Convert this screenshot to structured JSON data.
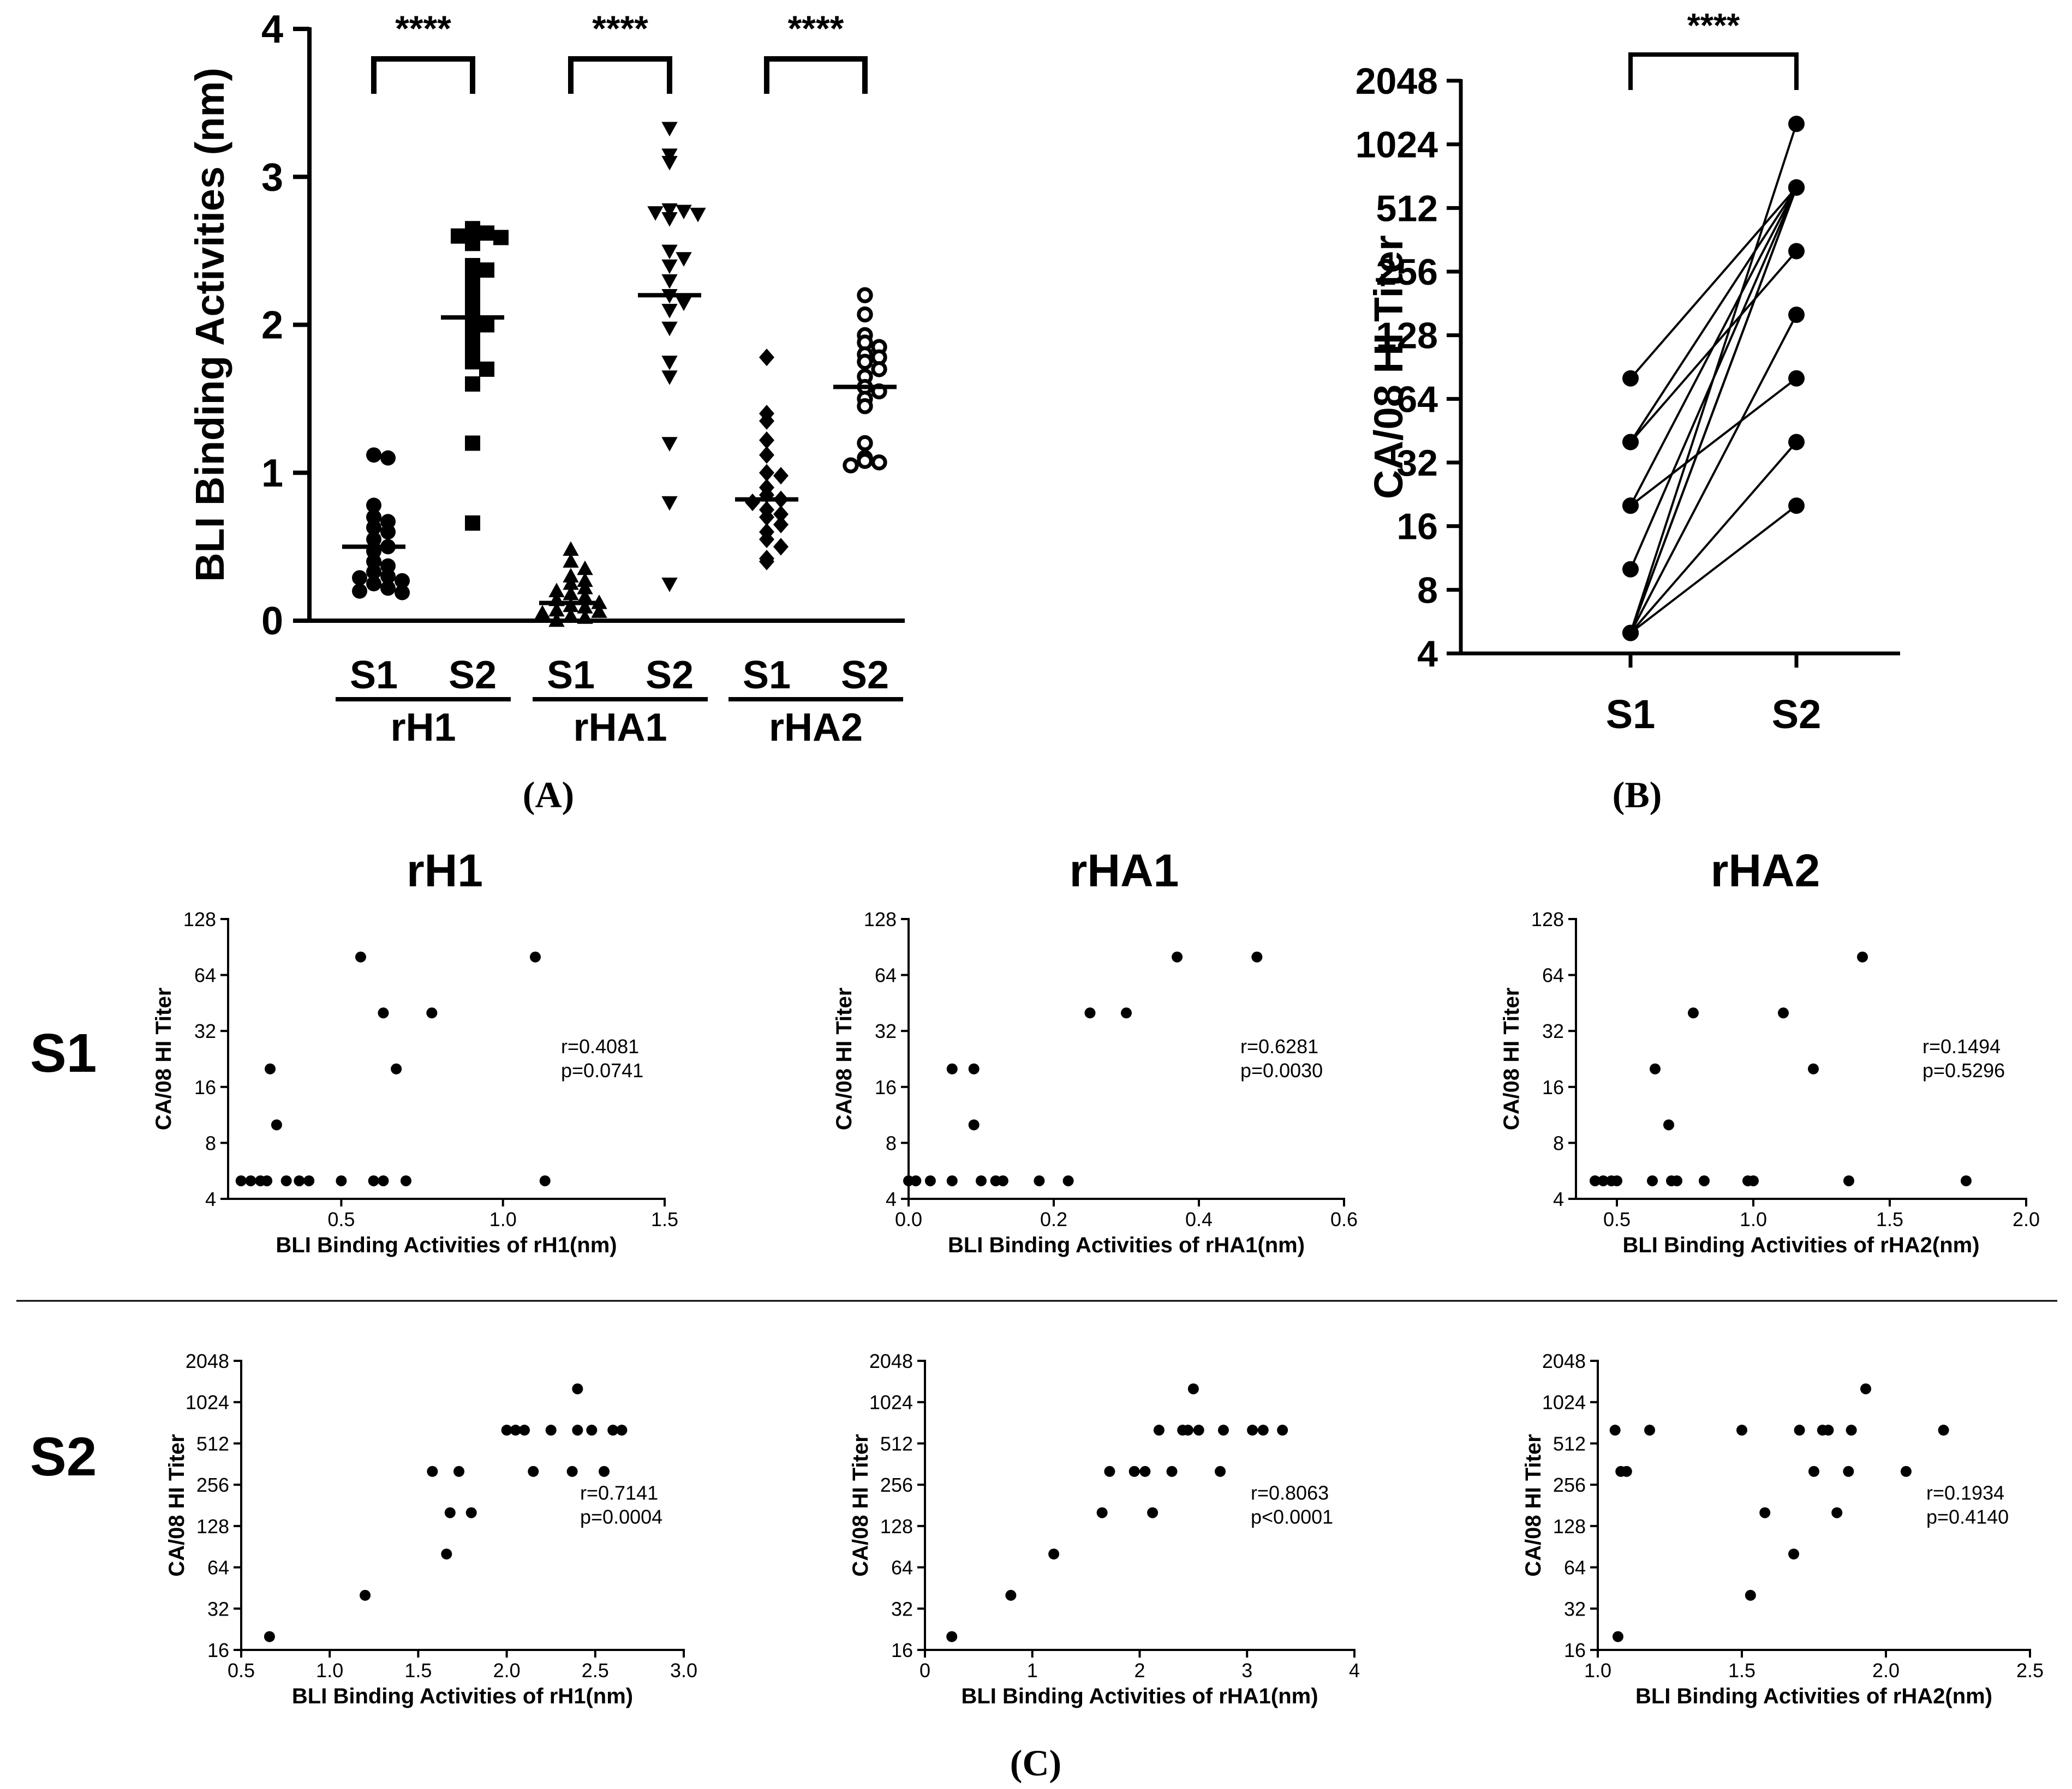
{
  "panel_labels": {
    "a": "(A)",
    "b": "(B)",
    "c": "(C)"
  },
  "row_labels": {
    "s1": "S1",
    "s2": "S2"
  },
  "column_titles": [
    "rH1",
    "rHA1",
    "rHA2"
  ],
  "chart_data": [
    {
      "id": "A",
      "type": "scatter",
      "ylabel": "BLI Binding Activities (nm)",
      "ylim": [
        0,
        4
      ],
      "yticks": [
        "0",
        "1",
        "2",
        "3",
        "4"
      ],
      "groups": [
        {
          "antigen": "rH1",
          "labels": [
            "S1",
            "S2"
          ],
          "significance": "****",
          "S1": {
            "marker": "circle",
            "mean": 0.5,
            "values": [
              1.12,
              1.1,
              0.78,
              0.7,
              0.67,
              0.63,
              0.6,
              0.55,
              0.5,
              0.47,
              0.4,
              0.37,
              0.33,
              0.3,
              0.29,
              0.27,
              0.25,
              0.22,
              0.2,
              0.19
            ]
          },
          "S2": {
            "marker": "square",
            "mean": 2.05,
            "values": [
              2.65,
              2.62,
              2.6,
              2.59,
              2.55,
              2.4,
              2.37,
              2.3,
              2.25,
              2.15,
              2.1,
              2.05,
              2.0,
              1.95,
              1.85,
              1.75,
              1.7,
              1.6,
              1.2,
              0.66
            ]
          }
        },
        {
          "antigen": "rHA1",
          "labels": [
            "S1",
            "S2"
          ],
          "significance": "****",
          "S1": {
            "marker": "triangle-up",
            "mean": 0.12,
            "values": [
              0.48,
              0.4,
              0.35,
              0.3,
              0.27,
              0.25,
              0.22,
              0.2,
              0.18,
              0.16,
              0.14,
              0.12,
              0.1,
              0.09,
              0.07,
              0.06,
              0.05,
              0.03,
              0.02,
              0.0
            ]
          },
          "S2": {
            "marker": "triangle-down",
            "mean": 2.2,
            "values": [
              3.33,
              3.15,
              3.1,
              2.78,
              2.77,
              2.76,
              2.75,
              2.72,
              2.5,
              2.45,
              2.4,
              2.3,
              2.2,
              2.15,
              2.1,
              1.98,
              1.75,
              1.65,
              1.2,
              0.8,
              0.25
            ]
          }
        },
        {
          "antigen": "rHA2",
          "labels": [
            "S1",
            "S2"
          ],
          "significance": "****",
          "S1": {
            "marker": "diamond",
            "mean": 0.82,
            "values": [
              1.78,
              1.4,
              1.35,
              1.22,
              1.12,
              1.0,
              0.98,
              0.9,
              0.85,
              0.82,
              0.8,
              0.75,
              0.72,
              0.7,
              0.65,
              0.6,
              0.55,
              0.5,
              0.42,
              0.4
            ]
          },
          "S2": {
            "marker": "open-circle",
            "mean": 1.58,
            "values": [
              2.2,
              2.07,
              1.93,
              1.88,
              1.85,
              1.8,
              1.78,
              1.75,
              1.7,
              1.65,
              1.58,
              1.55,
              1.5,
              1.45,
              1.2,
              1.1,
              1.08,
              1.07,
              1.05
            ]
          }
        }
      ]
    },
    {
      "id": "B",
      "type": "line",
      "ylabel": "CA/08 HI Titer",
      "yscale": "log2",
      "ylim": [
        4,
        2048
      ],
      "yticks": [
        "4",
        "8",
        "16",
        "32",
        "64",
        "128",
        "256",
        "512",
        "1024",
        "2048"
      ],
      "categories": [
        "S1",
        "S2"
      ],
      "significance": "****",
      "pairs": [
        [
          80,
          640
        ],
        [
          40,
          640
        ],
        [
          40,
          320
        ],
        [
          20,
          640
        ],
        [
          20,
          80
        ],
        [
          10,
          640
        ],
        [
          5,
          1280
        ],
        [
          5,
          640
        ],
        [
          5,
          640
        ],
        [
          5,
          160
        ],
        [
          5,
          40
        ],
        [
          5,
          20
        ]
      ]
    },
    {
      "id": "C-S1-rH1",
      "type": "scatter",
      "title": "rH1",
      "xlabel": "BLI Binding Activities of rH1(nm)",
      "ylabel": "CA/08 HI Titer",
      "xlim": [
        0.15,
        1.5
      ],
      "xticks": [
        "0.5",
        "1.0",
        "1.5"
      ],
      "xtick_values": [
        0.5,
        1.0,
        1.5
      ],
      "yscale": "log2",
      "ylim": [
        4,
        128
      ],
      "yticks": [
        "4",
        "8",
        "16",
        "32",
        "64",
        "128"
      ],
      "annotation": [
        "r=0.4081",
        "p=0.0741"
      ],
      "points": [
        [
          0.19,
          5
        ],
        [
          0.22,
          5
        ],
        [
          0.25,
          5
        ],
        [
          0.27,
          5
        ],
        [
          0.28,
          20
        ],
        [
          0.3,
          10
        ],
        [
          0.33,
          5
        ],
        [
          0.37,
          5
        ],
        [
          0.4,
          5
        ],
        [
          0.5,
          5
        ],
        [
          0.56,
          80
        ],
        [
          0.6,
          5
        ],
        [
          0.63,
          5
        ],
        [
          0.63,
          40
        ],
        [
          0.67,
          20
        ],
        [
          0.7,
          5
        ],
        [
          0.78,
          40
        ],
        [
          1.1,
          80
        ],
        [
          1.13,
          5
        ]
      ]
    },
    {
      "id": "C-S1-rHA1",
      "type": "scatter",
      "title": "rHA1",
      "xlabel": "BLI Binding Activities of rHA1(nm)",
      "ylabel": "CA/08 HI Titer",
      "xlim": [
        0,
        0.6
      ],
      "xticks": [
        "0.0",
        "0.2",
        "0.4",
        "0.6"
      ],
      "xtick_values": [
        0,
        0.2,
        0.4,
        0.6
      ],
      "yscale": "log2",
      "ylim": [
        4,
        128
      ],
      "yticks": [
        "4",
        "8",
        "16",
        "32",
        "64",
        "128"
      ],
      "annotation": [
        "r=0.6281",
        "p=0.0030"
      ],
      "points": [
        [
          0.0,
          5
        ],
        [
          0.01,
          5
        ],
        [
          0.03,
          5
        ],
        [
          0.06,
          20
        ],
        [
          0.06,
          5
        ],
        [
          0.09,
          20
        ],
        [
          0.09,
          10
        ],
        [
          0.1,
          5
        ],
        [
          0.12,
          5
        ],
        [
          0.13,
          5
        ],
        [
          0.18,
          5
        ],
        [
          0.22,
          5
        ],
        [
          0.25,
          40
        ],
        [
          0.3,
          40
        ],
        [
          0.37,
          80
        ],
        [
          0.48,
          80
        ]
      ]
    },
    {
      "id": "C-S1-rHA2",
      "type": "scatter",
      "title": "rHA2",
      "xlabel": "BLI Binding Activities of rHA2(nm)",
      "ylabel": "CA/08 HI Titer",
      "xlim": [
        0.35,
        2.0
      ],
      "xticks": [
        "0.5",
        "1.0",
        "1.5",
        "2.0"
      ],
      "xtick_values": [
        0.5,
        1.0,
        1.5,
        2.0
      ],
      "yscale": "log2",
      "ylim": [
        4,
        128
      ],
      "yticks": [
        "4",
        "8",
        "16",
        "32",
        "64",
        "128"
      ],
      "annotation": [
        "r=0.1494",
        "p=0.5296"
      ],
      "points": [
        [
          0.42,
          5
        ],
        [
          0.45,
          5
        ],
        [
          0.48,
          5
        ],
        [
          0.5,
          5
        ],
        [
          0.63,
          5
        ],
        [
          0.64,
          20
        ],
        [
          0.69,
          10
        ],
        [
          0.7,
          5
        ],
        [
          0.72,
          5
        ],
        [
          0.78,
          40
        ],
        [
          0.82,
          5
        ],
        [
          0.98,
          5
        ],
        [
          1.0,
          5
        ],
        [
          1.11,
          40
        ],
        [
          1.22,
          20
        ],
        [
          1.35,
          5
        ],
        [
          1.4,
          80
        ],
        [
          1.78,
          5
        ]
      ]
    },
    {
      "id": "C-S2-rH1",
      "type": "scatter",
      "title": "",
      "xlabel": "BLI Binding Activities of rH1(nm)",
      "ylabel": "CA/08 HI Titer",
      "xlim": [
        0.5,
        3.0
      ],
      "xticks": [
        "0.5",
        "1.0",
        "1.5",
        "2.0",
        "2.5",
        "3.0"
      ],
      "xtick_values": [
        0.5,
        1.0,
        1.5,
        2.0,
        2.5,
        3.0
      ],
      "yscale": "log2",
      "ylim": [
        16,
        2048
      ],
      "yticks": [
        "16",
        "32",
        "64",
        "128",
        "256",
        "512",
        "1024",
        "2048"
      ],
      "annotation": [
        "r=0.7141",
        "p=0.0004"
      ],
      "points": [
        [
          0.66,
          20
        ],
        [
          1.2,
          40
        ],
        [
          1.58,
          320
        ],
        [
          1.66,
          80
        ],
        [
          1.68,
          160
        ],
        [
          1.73,
          320
        ],
        [
          1.8,
          160
        ],
        [
          2.0,
          640
        ],
        [
          2.05,
          640
        ],
        [
          2.1,
          640
        ],
        [
          2.15,
          320
        ],
        [
          2.25,
          640
        ],
        [
          2.37,
          320
        ],
        [
          2.4,
          640
        ],
        [
          2.4,
          1280
        ],
        [
          2.48,
          640
        ],
        [
          2.55,
          320
        ],
        [
          2.6,
          640
        ],
        [
          2.65,
          640
        ]
      ]
    },
    {
      "id": "C-S2-rHA1",
      "type": "scatter",
      "title": "",
      "xlabel": "BLI Binding Activities of rHA1(nm)",
      "ylabel": "CA/08 HI Titer",
      "xlim": [
        0,
        4
      ],
      "xticks": [
        "0",
        "1",
        "2",
        "3",
        "4"
      ],
      "xtick_values": [
        0,
        1,
        2,
        3,
        4
      ],
      "yscale": "log2",
      "ylim": [
        16,
        2048
      ],
      "yticks": [
        "16",
        "32",
        "64",
        "128",
        "256",
        "512",
        "1024",
        "2048"
      ],
      "annotation": [
        "r=0.8063",
        "p<0.0001"
      ],
      "points": [
        [
          0.25,
          20
        ],
        [
          0.8,
          40
        ],
        [
          1.2,
          80
        ],
        [
          1.65,
          160
        ],
        [
          1.72,
          320
        ],
        [
          1.95,
          320
        ],
        [
          2.05,
          320
        ],
        [
          2.12,
          160
        ],
        [
          2.18,
          640
        ],
        [
          2.3,
          320
        ],
        [
          2.4,
          640
        ],
        [
          2.45,
          640
        ],
        [
          2.5,
          1280
        ],
        [
          2.55,
          640
        ],
        [
          2.75,
          320
        ],
        [
          2.78,
          640
        ],
        [
          3.05,
          640
        ],
        [
          3.15,
          640
        ],
        [
          3.33,
          640
        ]
      ]
    },
    {
      "id": "C-S2-rHA2",
      "type": "scatter",
      "title": "",
      "xlabel": "BLI Binding Activities of rHA2(nm)",
      "ylabel": "CA/08 HI Titer",
      "xlim": [
        1.0,
        2.5
      ],
      "xticks": [
        "1.0",
        "1.5",
        "2.0",
        "2.5"
      ],
      "xtick_values": [
        1.0,
        1.5,
        2.0,
        2.5
      ],
      "yscale": "log2",
      "ylim": [
        16,
        2048
      ],
      "yticks": [
        "16",
        "32",
        "64",
        "128",
        "256",
        "512",
        "1024",
        "2048"
      ],
      "annotation": [
        "r=0.1934",
        "p=0.4140"
      ],
      "points": [
        [
          1.06,
          640
        ],
        [
          1.07,
          20
        ],
        [
          1.08,
          320
        ],
        [
          1.1,
          320
        ],
        [
          1.18,
          640
        ],
        [
          1.5,
          640
        ],
        [
          1.53,
          40
        ],
        [
          1.58,
          160
        ],
        [
          1.68,
          80
        ],
        [
          1.7,
          640
        ],
        [
          1.75,
          320
        ],
        [
          1.78,
          640
        ],
        [
          1.8,
          640
        ],
        [
          1.83,
          160
        ],
        [
          1.87,
          320
        ],
        [
          1.88,
          640
        ],
        [
          1.93,
          1280
        ],
        [
          2.07,
          320
        ],
        [
          2.2,
          640
        ]
      ]
    }
  ]
}
